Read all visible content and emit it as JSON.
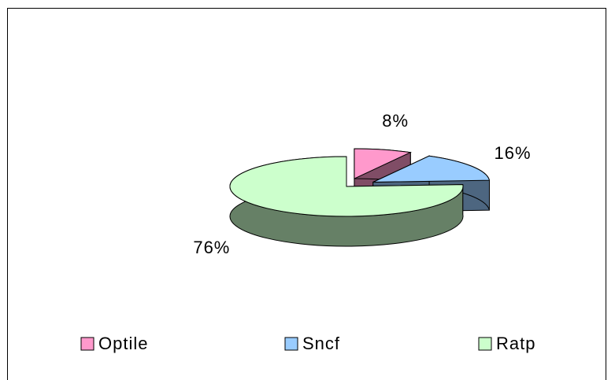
{
  "chart_data": {
    "type": "pie",
    "three_d": true,
    "categories": [
      "Optile",
      "Sncf",
      "Ratp"
    ],
    "values": [
      8,
      16,
      76
    ],
    "value_labels": [
      "8%",
      "16%",
      "76%"
    ],
    "colors": [
      "#ff99cc",
      "#99ccff",
      "#ccffcc"
    ],
    "legend": "bottom"
  }
}
